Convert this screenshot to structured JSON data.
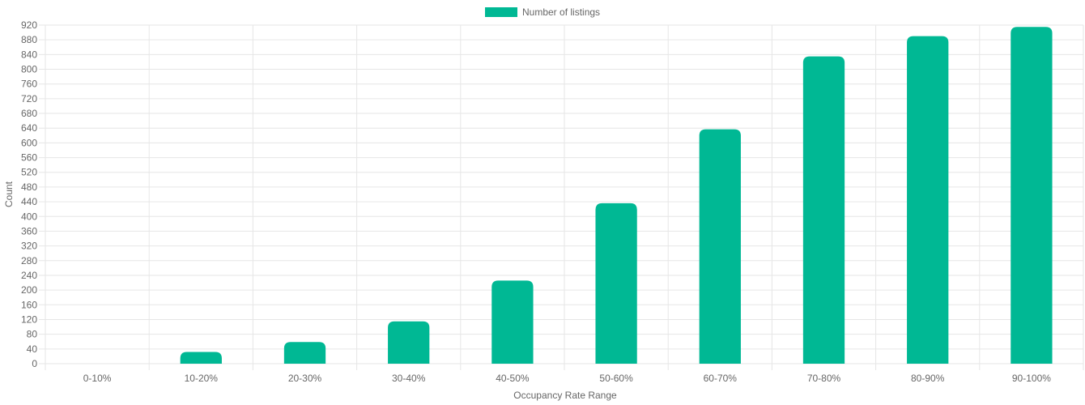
{
  "chart_data": {
    "type": "bar",
    "categories": [
      "0-10%",
      "10-20%",
      "20-30%",
      "30-40%",
      "40-50%",
      "50-60%",
      "60-70%",
      "70-80%",
      "80-90%",
      "90-100%"
    ],
    "series": [
      {
        "name": "Number of listings",
        "color": "#00b894",
        "values": [
          0,
          32,
          59,
          115,
          226,
          436,
          637,
          835,
          890,
          915
        ]
      }
    ],
    "xlabel": "Occupancy Rate Range",
    "ylabel": "Count",
    "ylim": [
      0,
      920
    ],
    "ytick_step": 40,
    "grid": true,
    "legend": "top-center"
  }
}
